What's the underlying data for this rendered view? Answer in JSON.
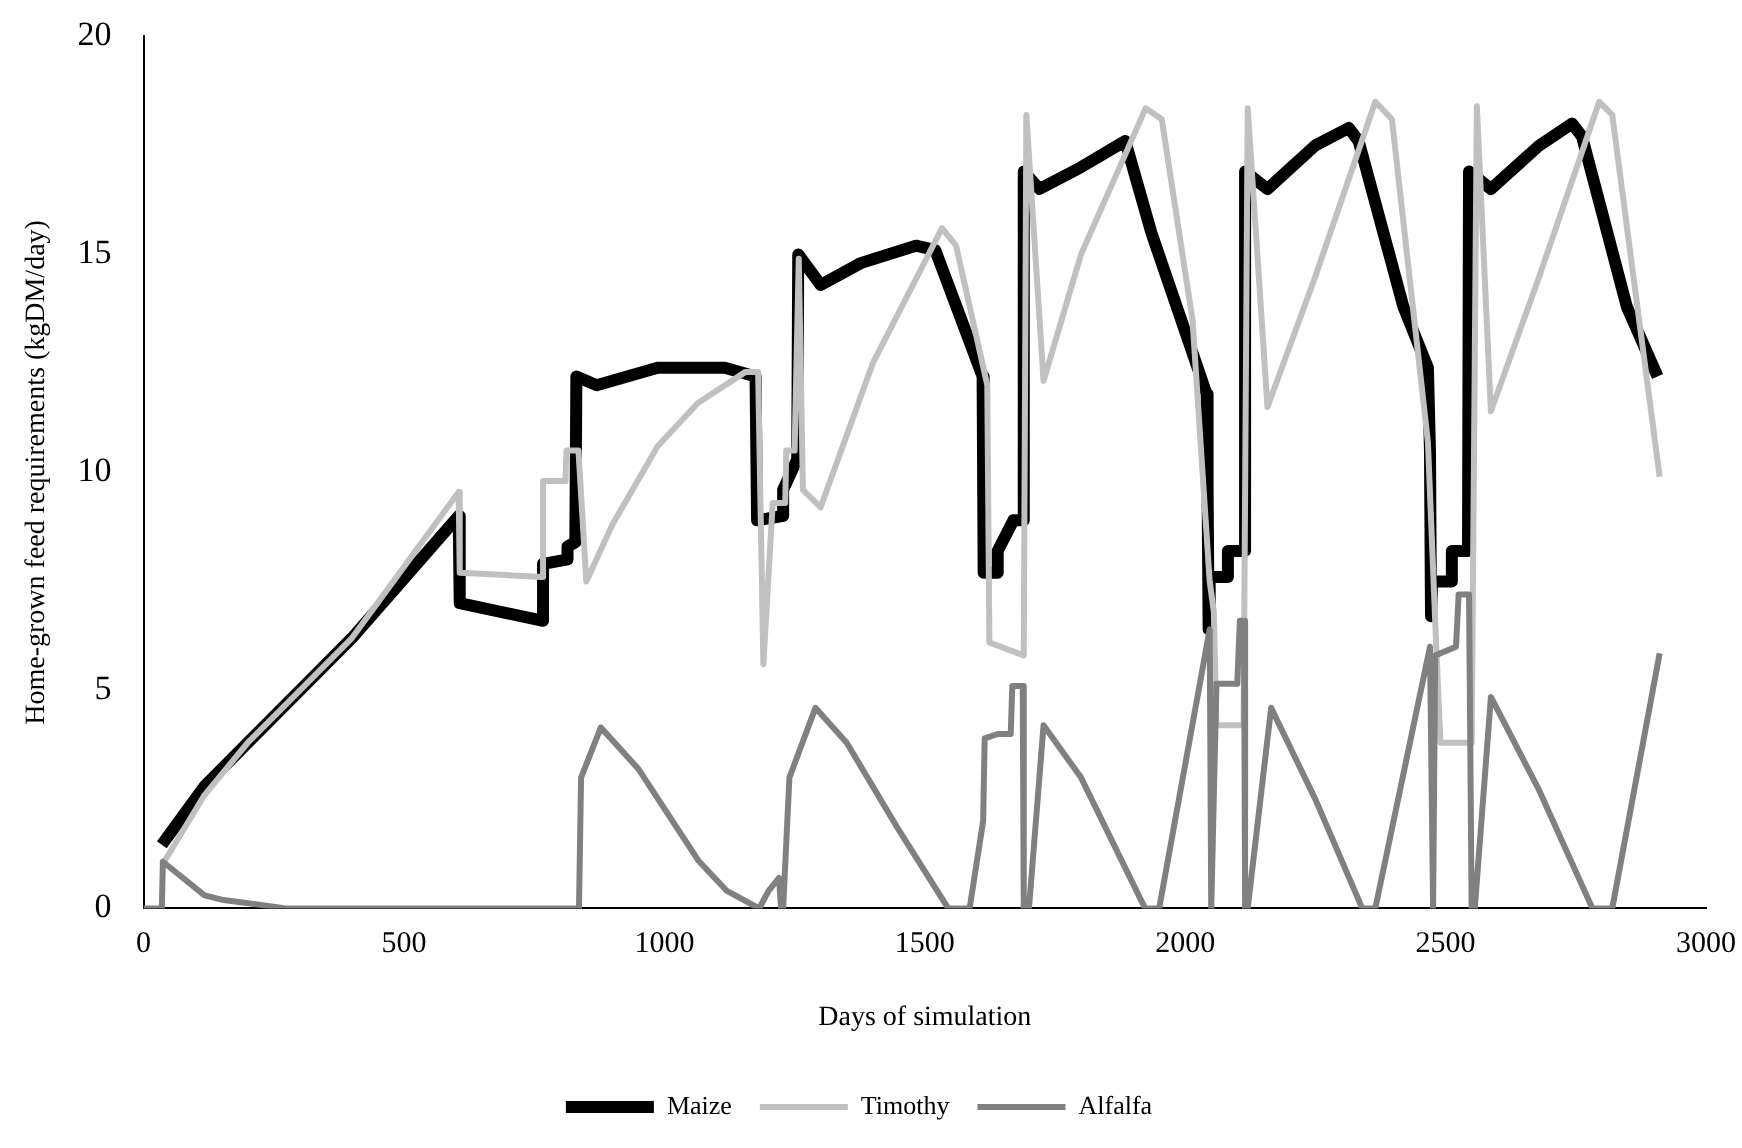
{
  "chart_data": {
    "type": "line",
    "xlabel": "Days of simulation",
    "ylabel": "Home-grown feed requirements (kgDM/day)",
    "xlim": [
      0,
      3000
    ],
    "xticks": [
      0,
      500,
      1000,
      1500,
      2000,
      2500,
      3000
    ],
    "ylim": [
      0,
      20
    ],
    "yticks": [
      0,
      5,
      10,
      15,
      20
    ],
    "grid": false,
    "legend": "bottom",
    "marker": "none",
    "line_style": "solid",
    "series": [
      {
        "name": "Maize",
        "color": "#000000",
        "x": [
          35,
          117,
          200,
          400,
          605,
          607,
          765,
          767,
          812,
          814,
          829,
          831,
          870,
          987,
          1116,
          1175,
          1178,
          1226,
          1228,
          1255,
          1257,
          1300,
          1377,
          1483,
          1520,
          1611,
          1613,
          1638,
          1640,
          1670,
          1688,
          1690,
          1720,
          1800,
          1885,
          1935,
          2041,
          2043,
          2045,
          2047,
          2080,
          2082,
          2113,
          2115,
          2158,
          2250,
          2314,
          2333,
          2419,
          2466,
          2470,
          2472,
          2474,
          2510,
          2512,
          2543,
          2545,
          2587,
          2680,
          2743,
          2762,
          2848,
          2907
        ],
        "values": [
          1.46,
          2.8,
          3.8,
          6.2,
          9.0,
          7.0,
          6.6,
          7.9,
          8.0,
          8.3,
          8.4,
          12.2,
          12.0,
          12.4,
          12.4,
          12.2,
          8.9,
          9.0,
          9.6,
          10.3,
          15.0,
          14.3,
          14.8,
          15.2,
          15.1,
          12.2,
          7.7,
          7.7,
          8.2,
          8.9,
          8.9,
          16.9,
          16.5,
          17.0,
          17.6,
          15.5,
          11.8,
          9.6,
          6.4,
          7.6,
          7.6,
          8.2,
          8.2,
          16.9,
          16.5,
          17.5,
          17.9,
          17.6,
          13.8,
          12.4,
          10.5,
          6.7,
          7.5,
          7.5,
          8.2,
          8.2,
          16.9,
          16.5,
          17.5,
          18.0,
          17.7,
          13.8,
          12.2
        ]
      },
      {
        "name": "Timothy",
        "color": "#c0c0c0",
        "x": [
          36,
          117,
          200,
          400,
          605,
          607,
          765,
          767,
          810,
          812,
          835,
          850,
          900,
          987,
          1065,
          1155,
          1180,
          1190,
          1208,
          1232,
          1234,
          1250,
          1258,
          1266,
          1300,
          1400,
          1533,
          1560,
          1620,
          1624,
          1690,
          1695,
          1728,
          1800,
          1924,
          1955,
          2014,
          2047,
          2055,
          2060,
          2112,
          2120,
          2158,
          2250,
          2365,
          2397,
          2466,
          2481,
          2490,
          2550,
          2560,
          2587,
          2680,
          2795,
          2820,
          2911
        ],
        "values": [
          1.0,
          2.6,
          3.8,
          6.2,
          9.55,
          7.7,
          7.6,
          9.8,
          9.8,
          10.5,
          10.5,
          7.5,
          8.8,
          10.6,
          11.6,
          12.3,
          12.3,
          5.6,
          9.3,
          9.3,
          10.5,
          10.5,
          14.9,
          9.6,
          9.2,
          12.5,
          15.6,
          15.2,
          12.0,
          6.1,
          5.8,
          18.2,
          12.1,
          15.0,
          18.35,
          18.1,
          13.5,
          7.5,
          6.8,
          4.2,
          4.2,
          18.35,
          11.5,
          14.5,
          18.5,
          18.1,
          10.7,
          6.3,
          3.8,
          3.8,
          18.4,
          11.4,
          14.5,
          18.5,
          18.2,
          9.9
        ]
      },
      {
        "name": "Alfalfa",
        "color": "#808080",
        "x": [
          0,
          35,
          37,
          117,
          150,
          273,
          836,
          840,
          878,
          950,
          1065,
          1120,
          1182,
          1200,
          1220,
          1224,
          1228,
          1240,
          1290,
          1350,
          1450,
          1545,
          1586,
          1612,
          1615,
          1640,
          1665,
          1668,
          1688,
          1690,
          1700,
          1728,
          1800,
          1923,
          1950,
          2047,
          2050,
          2060,
          2100,
          2105,
          2113,
          2115,
          2120,
          2165,
          2250,
          2340,
          2365,
          2470,
          2476,
          2480,
          2520,
          2525,
          2545,
          2550,
          2556,
          2587,
          2680,
          2782,
          2820,
          2911
        ],
        "values": [
          0,
          0,
          1.07,
          0.3,
          0.2,
          0,
          0,
          3.0,
          4.15,
          3.2,
          1.1,
          0.4,
          0,
          0.4,
          0.7,
          0,
          0,
          3.0,
          4.6,
          3.8,
          1.8,
          0,
          0,
          2.0,
          3.9,
          4.0,
          4.0,
          5.1,
          5.1,
          0,
          0,
          4.2,
          3.0,
          0,
          0,
          6.4,
          0,
          5.15,
          5.15,
          6.6,
          6.6,
          0,
          0,
          4.6,
          2.5,
          0,
          0,
          6.0,
          0,
          5.8,
          6.0,
          7.2,
          7.2,
          0,
          0,
          4.85,
          2.7,
          0,
          0,
          5.85
        ]
      }
    ]
  }
}
